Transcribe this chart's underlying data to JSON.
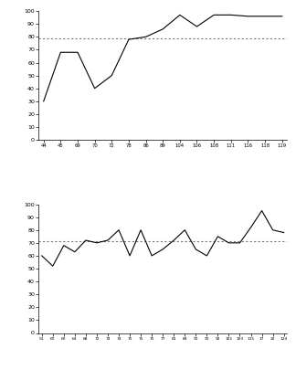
{
  "chart1": {
    "xlabels": [
      "44",
      "45",
      "69",
      "70",
      "72",
      "78",
      "86",
      "89",
      "104",
      "106",
      "108",
      "111",
      "116",
      "118",
      "119"
    ],
    "y": [
      30,
      68,
      68,
      40,
      50,
      78,
      80,
      86,
      97,
      88,
      97,
      97,
      96,
      96,
      96
    ],
    "hline": 79,
    "ylim": [
      0,
      100
    ],
    "yticks": [
      0,
      10,
      20,
      30,
      40,
      50,
      60,
      70,
      80,
      90,
      100
    ]
  },
  "chart2": {
    "xlabels": [
      "51",
      "60",
      "60",
      "64",
      "68",
      "72",
      "74",
      "74",
      "75",
      "75",
      "75",
      "77",
      "81",
      "84",
      "90",
      "90",
      "92",
      "101",
      "103",
      "111",
      "17",
      "20",
      "124"
    ],
    "y": [
      60,
      52,
      68,
      63,
      72,
      70,
      72,
      80,
      60,
      80,
      60,
      65,
      72,
      80,
      65,
      60,
      75,
      70,
      70,
      82,
      95,
      80,
      78
    ],
    "hline": 71,
    "ylim": [
      0,
      100
    ],
    "yticks": [
      0,
      10,
      20,
      30,
      40,
      50,
      60,
      70,
      80,
      90,
      100
    ]
  },
  "line_color": "#000000",
  "hline_color": "#777777",
  "bg_color": "#ffffff"
}
